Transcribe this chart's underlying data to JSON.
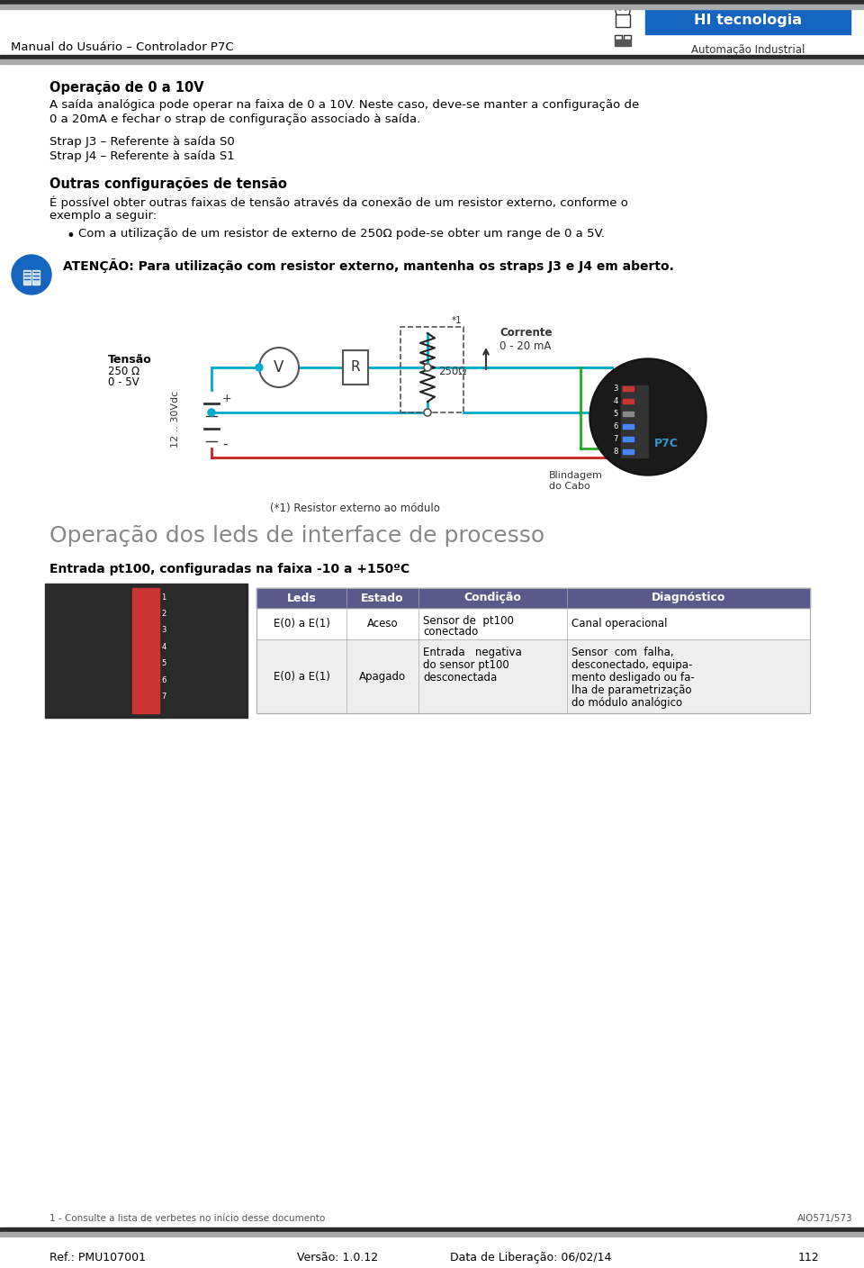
{
  "page_width": 9.6,
  "page_height": 14.08,
  "dpi": 100,
  "bg_color": "#ffffff",
  "header": {
    "left_text": "Manual do Usuário – Controlador P7C",
    "right_logo_text": "HI tecnologia",
    "right_sub_text": "Automação Industrial",
    "logo_bg": "#1a6fbd",
    "bar_top_dark": "#2a2a2a",
    "bar_top_gray": "#999999"
  },
  "footer": {
    "ref": "Ref.: PMU107001",
    "version": "Versão: 1.0.12",
    "date": "Data de Liberação: 06/02/14",
    "page": "112",
    "footnote": "1 - Consulte a lista de verbetes no início desse documento",
    "footnote_right": "AIO571/573"
  },
  "content": {
    "section1_title": "Operação de 0 a 10V",
    "section1_body_l1": "A saída analógica pode operar na faixa de 0 a 10V. Neste caso, deve-se manter a configuração de",
    "section1_body_l2": "0 a 20mA e fechar o strap de configuração associado à saída.",
    "strap_line1": "Strap J3 – Referente à saída S0",
    "strap_line2": "Strap J4 – Referente à saída S1",
    "section2_title": "Outras configurações de tensão",
    "section2_body_l1": "É possível obter outras faixas de tensão através da conexão de um resistor externo, conforme o",
    "section2_body_l2": "exemplo a seguir:",
    "bullet_text": "Com a utilização de um resistor de externo de 250Ω pode-se obter um range de 0 a 5V.",
    "attention_text": "ATENÇÃO: Para utilização com resistor externo, mantenha os straps J3 e J4 em aberto.",
    "circuit_tensao_l1": "Tensão",
    "circuit_tensao_l2": "250 Ω",
    "circuit_tensao_l3": "0 - 5V",
    "circuit_corrente_l1": "Corrente",
    "circuit_corrente_l2": "0 - 20 mA",
    "circuit_resistor_label": "250Ω",
    "circuit_star1": "*1",
    "circuit_blindagem_l1": "Blindagem",
    "circuit_blindagem_l2": "do Cabo",
    "circuit_voltage_label": "12 .. 30Vdc",
    "circuit_caption": "(*1) Resistor externo ao módulo",
    "section3_title": "Operação dos leds de interface de processo",
    "section3_sub": "Entrada pt100, configuradas na faixa -10 a +150ºC",
    "table_headers": [
      "Leds",
      "Estado",
      "Condição",
      "Diagnóstico"
    ],
    "table_header_bg": "#5a5a8a",
    "table_header_color": "#ffffff",
    "table_row1_leds": "E(0) a E(1)",
    "table_row1_estado": "Aceso",
    "table_row1_cond_l1": "Sensor de  pt100",
    "table_row1_cond_l2": "conectado",
    "table_row1_diag": "Canal operacional",
    "table_row2_leds": "E(0) a E(1)",
    "table_row2_estado": "Apagado",
    "table_row2_cond_l1": "Entrada   negativa",
    "table_row2_cond_l2": "do sensor pt100",
    "table_row2_cond_l3": "desconectada",
    "table_row2_diag_l1": "Sensor  com  falha,",
    "table_row2_diag_l2": "desconectado, equipa-",
    "table_row2_diag_l3": "mento desligado ou fa-",
    "table_row2_diag_l4": "lha de parametrização",
    "table_row2_diag_l5": "do módulo analógico"
  }
}
